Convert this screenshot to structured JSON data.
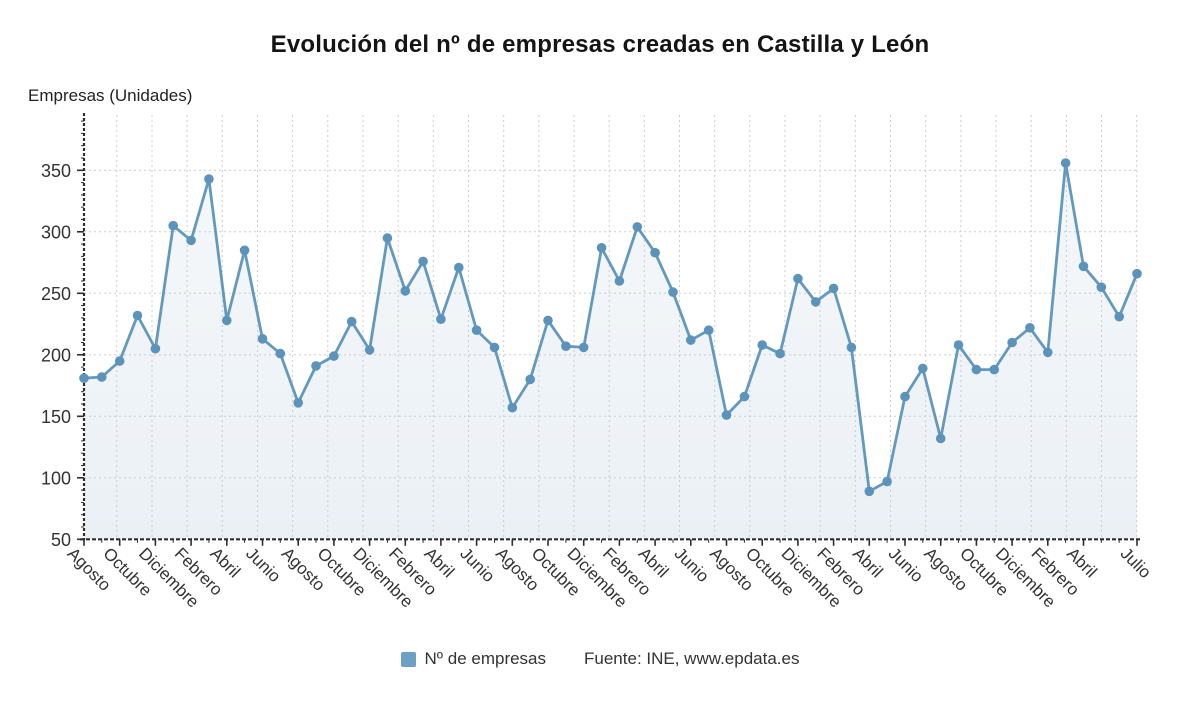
{
  "chart_data": {
    "type": "area",
    "title": "Evolución del nº de empresas creadas en Castilla y León",
    "unit_label": "Empresas (Unidades)",
    "legend": {
      "series_label": "Nº de empresas",
      "source_label": "Fuente: INE, www.epdata.es"
    },
    "ymin": 50,
    "ymax": 395,
    "yticks": [
      50,
      100,
      150,
      200,
      250,
      300,
      350
    ],
    "x_labels": [
      "Agosto",
      "",
      "Octubre",
      "",
      "Diciembre",
      "",
      "Febrero",
      "",
      "Abril",
      "",
      "Junio",
      "",
      "Agosto",
      "",
      "Octubre",
      "",
      "Diciembre",
      "",
      "Febrero",
      "",
      "Abril",
      "",
      "Junio",
      "",
      "Agosto",
      "",
      "Octubre",
      "",
      "Diciembre",
      "",
      "Febrero",
      "",
      "Abril",
      "",
      "Junio",
      "",
      "Agosto",
      "",
      "Octubre",
      "",
      "Diciembre",
      "",
      "Febrero",
      "",
      "Abril",
      "",
      "Junio",
      "",
      "Agosto",
      "",
      "Octubre",
      "",
      "Diciembre",
      "",
      "Febrero",
      "",
      "Abril",
      "",
      "",
      "Julio"
    ],
    "series": [
      {
        "name": "Nº de empresas",
        "values": [
          181,
          182,
          195,
          232,
          205,
          305,
          293,
          343,
          228,
          285,
          213,
          201,
          161,
          191,
          199,
          227,
          204,
          295,
          252,
          276,
          229,
          271,
          220,
          206,
          157,
          180,
          228,
          207,
          206,
          287,
          260,
          304,
          283,
          251,
          212,
          220,
          151,
          166,
          208,
          201,
          262,
          243,
          254,
          206,
          89,
          97,
          166,
          189,
          132,
          208,
          188,
          188,
          210,
          222,
          202,
          356,
          272,
          255,
          231,
          266
        ]
      }
    ],
    "colors": {
      "line": "#6399bf",
      "marker": "#5b93ba",
      "legend_square": "#6ba1c4",
      "grid": "#cccccc",
      "axis": "#2e2e2e",
      "text": "#333333",
      "area_top": "rgba(125,165,200,0.07)",
      "area_bottom": "rgba(110,150,185,0.14)"
    }
  }
}
